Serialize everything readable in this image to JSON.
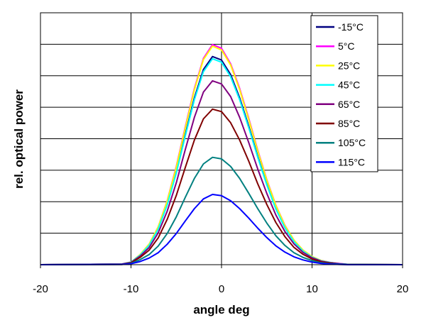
{
  "chart_data": {
    "type": "line",
    "title": "",
    "xlabel": "angle deg",
    "ylabel": "rel. optical power",
    "xlim": [
      -20,
      20
    ],
    "ylim": [
      0,
      8
    ],
    "xticks": [
      -20,
      -10,
      0,
      10,
      20
    ],
    "y_gridlines": 8,
    "grid": true,
    "legend_position": "top-right",
    "x": [
      -20,
      -11,
      -10,
      -9,
      -8,
      -7,
      -6,
      -5,
      -4,
      -3,
      -2,
      -1,
      0,
      1,
      2,
      3,
      4,
      5,
      6,
      7,
      8,
      9,
      10,
      11,
      12,
      13,
      14,
      20
    ],
    "series": [
      {
        "name": "-15°C",
        "color": "#000080",
        "values": [
          0,
          0.02,
          0.08,
          0.3,
          0.62,
          1.14,
          1.92,
          2.95,
          4.14,
          5.3,
          6.2,
          6.61,
          6.5,
          6.04,
          5.3,
          4.4,
          3.44,
          2.56,
          1.79,
          1.18,
          0.74,
          0.44,
          0.24,
          0.13,
          0.07,
          0.03,
          0.01,
          0
        ]
      },
      {
        "name": "5°C",
        "color": "#FF00FF",
        "values": [
          0,
          0.02,
          0.08,
          0.32,
          0.65,
          1.2,
          2.03,
          3.12,
          4.38,
          5.6,
          6.55,
          6.99,
          6.87,
          6.38,
          5.6,
          4.65,
          3.64,
          2.7,
          1.89,
          1.25,
          0.78,
          0.46,
          0.26,
          0.13,
          0.07,
          0.04,
          0.01,
          0
        ]
      },
      {
        "name": "25°C",
        "color": "#FFFF00",
        "values": [
          0,
          0.02,
          0.08,
          0.32,
          0.65,
          1.2,
          2.02,
          3.09,
          4.34,
          5.56,
          6.51,
          6.94,
          6.82,
          6.34,
          5.56,
          4.61,
          3.61,
          2.68,
          1.88,
          1.24,
          0.78,
          0.46,
          0.26,
          0.13,
          0.07,
          0.03,
          0.01,
          0
        ]
      },
      {
        "name": "45°C",
        "color": "#00FFFF",
        "values": [
          0,
          0.02,
          0.08,
          0.3,
          0.61,
          1.13,
          1.9,
          2.91,
          4.09,
          5.24,
          6.13,
          6.54,
          6.43,
          5.97,
          5.24,
          4.35,
          3.41,
          2.53,
          1.77,
          1.17,
          0.73,
          0.43,
          0.24,
          0.12,
          0.07,
          0.03,
          0.01,
          0
        ]
      },
      {
        "name": "65°C",
        "color": "#800080",
        "values": [
          0,
          0.02,
          0.07,
          0.27,
          0.54,
          1.01,
          1.7,
          2.6,
          3.66,
          4.68,
          5.48,
          5.84,
          5.74,
          5.34,
          4.68,
          3.88,
          3.04,
          2.26,
          1.58,
          1.05,
          0.66,
          0.39,
          0.22,
          0.11,
          0.06,
          0.03,
          0.01,
          0
        ]
      },
      {
        "name": "85°C",
        "color": "#800000",
        "values": [
          0,
          0.01,
          0.06,
          0.23,
          0.46,
          0.85,
          1.44,
          2.2,
          3.09,
          3.96,
          4.63,
          4.94,
          4.86,
          4.51,
          3.96,
          3.29,
          2.57,
          1.91,
          1.34,
          0.89,
          0.55,
          0.33,
          0.18,
          0.09,
          0.05,
          0.02,
          0.01,
          0
        ]
      },
      {
        "name": "105°C",
        "color": "#008080",
        "values": [
          0,
          0.01,
          0.04,
          0.16,
          0.32,
          0.59,
          0.99,
          1.52,
          2.14,
          2.74,
          3.2,
          3.41,
          3.36,
          3.12,
          2.74,
          2.27,
          1.78,
          1.32,
          0.92,
          0.61,
          0.38,
          0.23,
          0.13,
          0.06,
          0.03,
          0.02,
          0.01,
          0
        ]
      },
      {
        "name": "115°C",
        "color": "#0000FF",
        "values": [
          0,
          0.01,
          0.03,
          0.1,
          0.21,
          0.38,
          0.65,
          0.99,
          1.39,
          1.78,
          2.09,
          2.23,
          2.19,
          2.03,
          1.78,
          1.48,
          1.16,
          0.86,
          0.6,
          0.4,
          0.25,
          0.15,
          0.08,
          0.04,
          0.02,
          0.01,
          0.0,
          0
        ]
      }
    ]
  }
}
